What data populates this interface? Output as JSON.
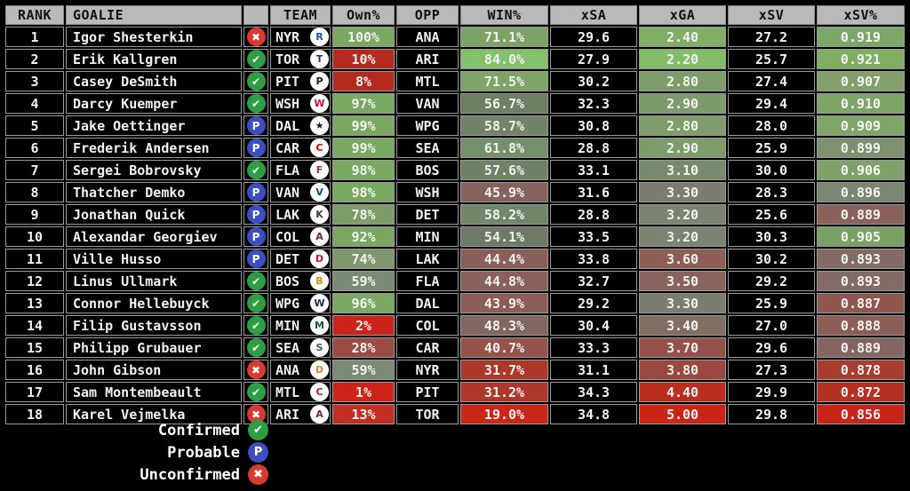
{
  "chart_data": {
    "type": "table",
    "columns": [
      "RANK",
      "GOALIE",
      "",
      "TEAM",
      "Own%",
      "OPP",
      "WIN%",
      "xSA",
      "xGA",
      "xSV",
      "xSV%"
    ],
    "rows": [
      {
        "rank": "1",
        "goalie": "Igor Shesterkin",
        "status": "unconfirmed",
        "team": "NYR",
        "logo_glyph": "R",
        "logo_color": "#1d4ea8",
        "own": "100%",
        "own_bg": "#79a861",
        "opp": "ANA",
        "win": "71.1%",
        "win_bg": "#7da266",
        "xsa": "29.6",
        "xga": "2.40",
        "xga_bg": "#7fae64",
        "xsv": "27.2",
        "xsvp": "0.919",
        "xsvp_bg": "#7da768"
      },
      {
        "rank": "2",
        "goalie": "Erik Kallgren",
        "status": "confirmed",
        "team": "TOR",
        "logo_glyph": "T",
        "logo_color": "#1a3e7e",
        "own": "10%",
        "own_bg": "#b52a1f",
        "opp": "ARI",
        "win": "84.0%",
        "win_bg": "#85c06c",
        "xsa": "27.9",
        "xga": "2.20",
        "xga_bg": "#84bd68",
        "xsv": "25.7",
        "xsvp": "0.921",
        "xsvp_bg": "#7fae63"
      },
      {
        "rank": "3",
        "goalie": "Casey DeSmith",
        "status": "confirmed",
        "team": "PIT",
        "logo_glyph": "P",
        "logo_color": "#1b1b1b",
        "own": "8%",
        "own_bg": "#b52a1f",
        "opp": "MTL",
        "win": "71.5%",
        "win_bg": "#7fa468",
        "xsa": "30.2",
        "xga": "2.80",
        "xga_bg": "#7f9d6b",
        "xsv": "27.4",
        "xsvp": "0.907",
        "xsvp_bg": "#839f6c"
      },
      {
        "rank": "4",
        "goalie": "Darcy Kuemper",
        "status": "confirmed",
        "team": "WSH",
        "logo_glyph": "W",
        "logo_color": "#c8102e",
        "own": "97%",
        "own_bg": "#79a861",
        "opp": "VAN",
        "win": "56.7%",
        "win_bg": "#6d7f63",
        "xsa": "32.3",
        "xga": "2.90",
        "xga_bg": "#7e9b6b",
        "xsv": "29.4",
        "xsvp": "0.910",
        "xsvp_bg": "#7fa566"
      },
      {
        "rank": "5",
        "goalie": "Jake Oettinger",
        "status": "probable",
        "team": "DAL",
        "logo_glyph": "★",
        "logo_color": "#1b1b1b",
        "own": "99%",
        "own_bg": "#79a861",
        "opp": "WPG",
        "win": "58.7%",
        "win_bg": "#718468",
        "xsa": "30.8",
        "xga": "2.80",
        "xga_bg": "#7f9d6b",
        "xsv": "28.0",
        "xsvp": "0.909",
        "xsvp_bg": "#7fa567"
      },
      {
        "rank": "6",
        "goalie": "Frederik Andersen",
        "status": "probable",
        "team": "CAR",
        "logo_glyph": "C",
        "logo_color": "#cc0000",
        "own": "99%",
        "own_bg": "#79a861",
        "opp": "SEA",
        "win": "61.8%",
        "win_bg": "#75906a",
        "xsa": "28.8",
        "xga": "2.90",
        "xga_bg": "#7e9b6b",
        "xsv": "25.9",
        "xsvp": "0.899",
        "xsvp_bg": "#7b9170"
      },
      {
        "rank": "7",
        "goalie": "Sergei Bobrovsky",
        "status": "confirmed",
        "team": "FLA",
        "logo_glyph": "F",
        "logo_color": "#9a3333",
        "own": "98%",
        "own_bg": "#79a861",
        "opp": "BOS",
        "win": "57.6%",
        "win_bg": "#6f8265",
        "xsa": "33.1",
        "xga": "3.10",
        "xga_bg": "#788a6c",
        "xsv": "30.0",
        "xsvp": "0.906",
        "xsvp_bg": "#81a16b"
      },
      {
        "rank": "8",
        "goalie": "Thatcher Demko",
        "status": "probable",
        "team": "VAN",
        "logo_glyph": "V",
        "logo_color": "#00508e",
        "own": "98%",
        "own_bg": "#79a861",
        "opp": "WSH",
        "win": "45.9%",
        "win_bg": "#87615b",
        "xsa": "31.6",
        "xga": "3.30",
        "xga_bg": "#7a7e6f",
        "xsv": "28.3",
        "xsvp": "0.896",
        "xsvp_bg": "#7c8772"
      },
      {
        "rank": "9",
        "goalie": "Jonathan Quick",
        "status": "probable",
        "team": "LAK",
        "logo_glyph": "K",
        "logo_color": "#3a3a3a",
        "own": "78%",
        "own_bg": "#7e9c68",
        "opp": "DET",
        "win": "58.2%",
        "win_bg": "#71876a",
        "xsa": "28.8",
        "xga": "3.20",
        "xga_bg": "#7a8470",
        "xsv": "25.6",
        "xsvp": "0.889",
        "xsvp_bg": "#8a625b"
      },
      {
        "rank": "10",
        "goalie": "Alexandar Georgiev",
        "status": "probable",
        "team": "COL",
        "logo_glyph": "A",
        "logo_color": "#6f263d",
        "own": "92%",
        "own_bg": "#7aa662",
        "opp": "MIN",
        "win": "54.1%",
        "win_bg": "#6d7b66",
        "xsa": "33.5",
        "xga": "3.20",
        "xga_bg": "#7a8470",
        "xsv": "30.3",
        "xsvp": "0.905",
        "xsvp_bg": "#7aa163"
      },
      {
        "rank": "11",
        "goalie": "Ville Husso",
        "status": "probable",
        "team": "DET",
        "logo_glyph": "D",
        "logo_color": "#ce1126",
        "own": "74%",
        "own_bg": "#80966c",
        "opp": "LAK",
        "win": "44.4%",
        "win_bg": "#8a5f59",
        "xsa": "33.8",
        "xga": "3.60",
        "xga_bg": "#8e5d55",
        "xsv": "30.2",
        "xsvp": "0.893",
        "xsvp_bg": "#826b64"
      },
      {
        "rank": "12",
        "goalie": "Linus Ullmark",
        "status": "confirmed",
        "team": "BOS",
        "logo_glyph": "B",
        "logo_color": "#c79114",
        "own": "59%",
        "own_bg": "#7b8a74",
        "opp": "FLA",
        "win": "44.8%",
        "win_bg": "#8a615a",
        "xsa": "32.7",
        "xga": "3.50",
        "xga_bg": "#89645d",
        "xsv": "29.2",
        "xsvp": "0.893",
        "xsvp_bg": "#826b64"
      },
      {
        "rank": "13",
        "goalie": "Connor Hellebuyck",
        "status": "confirmed",
        "team": "WPG",
        "logo_glyph": "W",
        "logo_color": "#0f2b5c",
        "own": "96%",
        "own_bg": "#7ba964",
        "opp": "DAL",
        "win": "43.9%",
        "win_bg": "#8b5d56",
        "xsa": "29.2",
        "xga": "3.30",
        "xga_bg": "#7a7e6f",
        "xsv": "25.9",
        "xsvp": "0.887",
        "xsvp_bg": "#90574f"
      },
      {
        "rank": "14",
        "goalie": "Filip Gustavsson",
        "status": "confirmed",
        "team": "MIN",
        "logo_glyph": "M",
        "logo_color": "#14583f",
        "own": "2%",
        "own_bg": "#cc2418",
        "opp": "COL",
        "win": "48.3%",
        "win_bg": "#816760",
        "xsa": "30.4",
        "xga": "3.40",
        "xga_bg": "#816d62",
        "xsv": "27.0",
        "xsvp": "0.888",
        "xsvp_bg": "#8d5e57"
      },
      {
        "rank": "15",
        "goalie": "Philipp Grubauer",
        "status": "confirmed",
        "team": "SEA",
        "logo_glyph": "S",
        "logo_color": "#355e6e",
        "own": "28%",
        "own_bg": "#9c4a44",
        "opp": "CAR",
        "win": "40.7%",
        "win_bg": "#94544b",
        "xsa": "33.3",
        "xga": "3.70",
        "xga_bg": "#955049",
        "xsv": "29.6",
        "xsvp": "0.889",
        "xsvp_bg": "#85655f"
      },
      {
        "rank": "16",
        "goalie": "John Gibson",
        "status": "unconfirmed",
        "team": "ANA",
        "logo_glyph": "D",
        "logo_color": "#d98e28",
        "own": "59%",
        "own_bg": "#7b8a74",
        "opp": "NYR",
        "win": "31.7%",
        "win_bg": "#ac382a",
        "xsa": "31.1",
        "xga": "3.80",
        "xga_bg": "#9b4840",
        "xsv": "27.3",
        "xsvp": "0.878",
        "xsvp_bg": "#a63d2e"
      },
      {
        "rank": "17",
        "goalie": "Sam Montembeault",
        "status": "confirmed",
        "team": "MTL",
        "logo_glyph": "C",
        "logo_color": "#af1e2d",
        "own": "1%",
        "own_bg": "#cc2418",
        "opp": "PIT",
        "win": "31.2%",
        "win_bg": "#ad372a",
        "xsa": "34.3",
        "xga": "4.40",
        "xga_bg": "#bb2d1e",
        "xsv": "29.9",
        "xsvp": "0.872",
        "xsvp_bg": "#b23123"
      },
      {
        "rank": "18",
        "goalie": "Karel Vejmelka",
        "status": "unconfirmed",
        "team": "ARI",
        "logo_glyph": "A",
        "logo_color": "#8c2633",
        "own": "13%",
        "own_bg": "#c22e22",
        "opp": "TOR",
        "win": "19.0%",
        "win_bg": "#ca2717",
        "xsa": "34.8",
        "xga": "5.00",
        "xga_bg": "#cc2415",
        "xsv": "29.8",
        "xsvp": "0.856",
        "xsvp_bg": "#c9241a"
      }
    ]
  },
  "legend": [
    {
      "label": "Confirmed",
      "status": "confirmed"
    },
    {
      "label": "Probable",
      "status": "probable"
    },
    {
      "label": "Unconfirmed",
      "status": "unconfirmed"
    }
  ],
  "status_glyphs": {
    "confirmed": "✔",
    "probable": "P",
    "unconfirmed": "✖"
  },
  "status_colors": {
    "confirmed": "#2e9e44",
    "probable": "#3b4fc2",
    "unconfirmed": "#d93a2f"
  },
  "theme": {
    "background": "#000000",
    "header_bg": "#b9b9b9",
    "header_text": "#111111",
    "cell_border": "#9a9a9a",
    "row_bg": "#000000",
    "row_text": "#f2f2f2"
  }
}
